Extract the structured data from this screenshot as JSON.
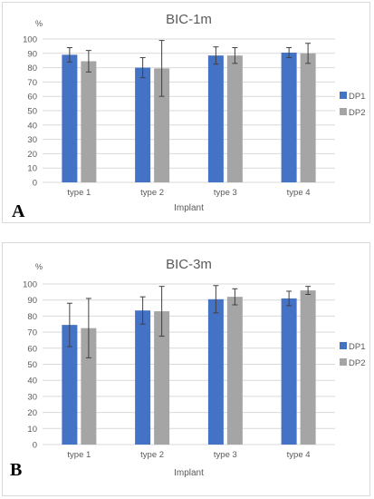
{
  "colors": {
    "DP1": "#4472c4",
    "DP2": "#a5a5a5",
    "gridline": "#d9d9d9",
    "text": "#595959",
    "errorbar": "#404040"
  },
  "panels": [
    {
      "letter": "A"
    },
    {
      "letter": "B"
    }
  ],
  "chart_data": [
    {
      "type": "bar",
      "title": "BIC-1m",
      "xlabel": "Implant",
      "ylabel": "%",
      "ylim": [
        0,
        100
      ],
      "yticks": [
        0,
        10,
        20,
        30,
        40,
        50,
        60,
        70,
        80,
        90,
        100
      ],
      "grid": true,
      "legend": "right",
      "categories": [
        "type 1",
        "type 2",
        "type 3",
        "type 4"
      ],
      "series": [
        {
          "name": "DP1",
          "values": [
            89,
            80,
            88.5,
            90.5
          ],
          "errors": [
            5,
            7,
            6,
            3.5
          ]
        },
        {
          "name": "DP2",
          "values": [
            84.5,
            79.5,
            88.5,
            90
          ],
          "errors": [
            7.5,
            19.5,
            5.5,
            7
          ]
        }
      ]
    },
    {
      "type": "bar",
      "title": "BIC-3m",
      "xlabel": "Implant",
      "ylabel": "%",
      "ylim": [
        0,
        100
      ],
      "yticks": [
        0,
        10,
        20,
        30,
        40,
        50,
        60,
        70,
        80,
        90,
        100
      ],
      "grid": true,
      "legend": "right",
      "categories": [
        "type 1",
        "type 2",
        "type 3",
        "type 4"
      ],
      "series": [
        {
          "name": "DP1",
          "values": [
            74.5,
            83.5,
            90.5,
            91
          ],
          "errors": [
            13.5,
            8.5,
            8.5,
            4.5
          ]
        },
        {
          "name": "DP2",
          "values": [
            72.5,
            83,
            92,
            96
          ],
          "errors": [
            18.5,
            15.5,
            5,
            2.5
          ]
        }
      ]
    }
  ]
}
